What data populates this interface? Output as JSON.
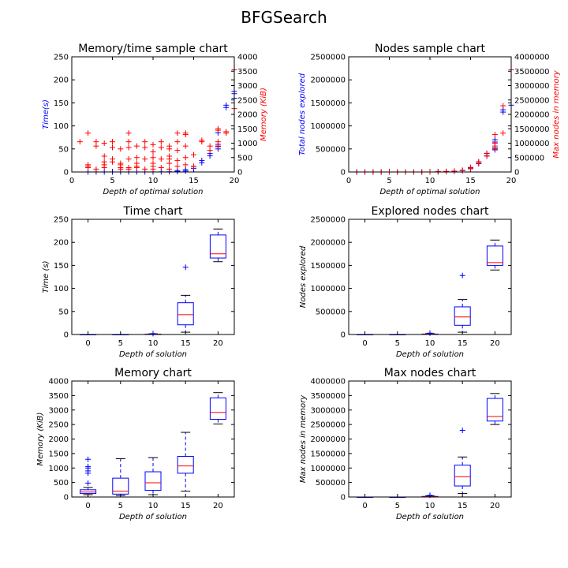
{
  "figure": {
    "title": "BFGSearch",
    "colors": {
      "primary": "#0000ff",
      "secondary": "#ff0000",
      "median": "#ff0000",
      "box": "#0000ff"
    }
  },
  "chart_data": [
    {
      "id": "memtime",
      "type": "scatter",
      "title": "Memory/time sample chart",
      "xlabel": "Depth of optimal solution",
      "ylabel": "Time(s)",
      "ylabel_right": "Memory (KiB)",
      "xlim": [
        0,
        20
      ],
      "xticks": [
        "0",
        "5",
        "10",
        "15",
        "20"
      ],
      "ylim": [
        0,
        250
      ],
      "yticks": [
        "0",
        "50",
        "100",
        "150",
        "200",
        "250"
      ],
      "ylim_right": [
        0,
        4000
      ],
      "yticks_right": [
        "0",
        "500",
        "1000",
        "1500",
        "2000",
        "2500",
        "3000",
        "3500",
        "4000"
      ],
      "series": [
        {
          "axis": "left",
          "color": "#0000ff",
          "marker": "+",
          "points": [
            [
              2,
              0.1
            ],
            [
              3,
              0.1
            ],
            [
              4,
              0.1
            ],
            [
              5,
              0.1
            ],
            [
              6,
              0.1
            ],
            [
              7,
              0.1
            ],
            [
              8,
              0.1
            ],
            [
              9,
              0.1
            ],
            [
              10,
              0.2
            ],
            [
              11,
              0.3
            ],
            [
              12,
              0.5
            ],
            [
              13,
              1
            ],
            [
              13,
              3
            ],
            [
              14,
              2
            ],
            [
              14,
              5
            ],
            [
              15,
              8
            ],
            [
              15,
              12
            ],
            [
              16,
              20
            ],
            [
              16,
              25
            ],
            [
              17,
              35
            ],
            [
              17,
              40
            ],
            [
              18,
              50
            ],
            [
              18,
              55
            ],
            [
              18,
              60
            ],
            [
              18,
              85
            ],
            [
              19,
              140
            ],
            [
              19,
              145
            ],
            [
              20,
              160
            ],
            [
              20,
              170
            ],
            [
              20,
              175
            ]
          ]
        },
        {
          "axis": "right",
          "color": "#ff0000",
          "marker": "+",
          "points": [
            [
              1,
              1050
            ],
            [
              2,
              250
            ],
            [
              2,
              200
            ],
            [
              2,
              150
            ],
            [
              2,
              1350
            ],
            [
              3,
              1050
            ],
            [
              3,
              900
            ],
            [
              3,
              100
            ],
            [
              4,
              1000
            ],
            [
              4,
              550
            ],
            [
              4,
              350
            ],
            [
              4,
              250
            ],
            [
              4,
              150
            ],
            [
              5,
              1050
            ],
            [
              5,
              850
            ],
            [
              5,
              450
            ],
            [
              5,
              350
            ],
            [
              6,
              800
            ],
            [
              6,
              300
            ],
            [
              6,
              250
            ],
            [
              6,
              150
            ],
            [
              6,
              100
            ],
            [
              7,
              1350
            ],
            [
              7,
              1050
            ],
            [
              7,
              850
            ],
            [
              7,
              450
            ],
            [
              7,
              150
            ],
            [
              7,
              100
            ],
            [
              8,
              900
            ],
            [
              8,
              500
            ],
            [
              8,
              300
            ],
            [
              8,
              200
            ],
            [
              8,
              150
            ],
            [
              9,
              1050
            ],
            [
              9,
              850
            ],
            [
              9,
              450
            ],
            [
              9,
              100
            ],
            [
              10,
              950
            ],
            [
              10,
              700
            ],
            [
              10,
              500
            ],
            [
              10,
              300
            ],
            [
              10,
              200
            ],
            [
              10,
              100
            ],
            [
              11,
              1050
            ],
            [
              11,
              850
            ],
            [
              11,
              450
            ],
            [
              11,
              150
            ],
            [
              12,
              900
            ],
            [
              12,
              800
            ],
            [
              12,
              550
            ],
            [
              12,
              450
            ],
            [
              12,
              300
            ],
            [
              12,
              100
            ],
            [
              13,
              1350
            ],
            [
              13,
              1050
            ],
            [
              13,
              750
            ],
            [
              13,
              400
            ],
            [
              13,
              200
            ],
            [
              14,
              1350
            ],
            [
              14,
              1300
            ],
            [
              14,
              900
            ],
            [
              14,
              500
            ],
            [
              14,
              250
            ],
            [
              15,
              600
            ],
            [
              15,
              200
            ],
            [
              16,
              1050
            ],
            [
              16,
              1100
            ],
            [
              17,
              900
            ],
            [
              17,
              750
            ],
            [
              18,
              1500
            ],
            [
              18,
              1450
            ],
            [
              18,
              1050
            ],
            [
              18,
              900
            ],
            [
              19,
              1400
            ],
            [
              19,
              1350
            ],
            [
              20,
              2200
            ],
            [
              20,
              3550
            ]
          ]
        }
      ]
    },
    {
      "id": "nodes",
      "type": "scatter",
      "title": "Nodes sample chart",
      "xlabel": "Depth of optimal solution",
      "ylabel": "Total nodes explored",
      "ylabel_right": "Max nodes in memory",
      "xlim": [
        0,
        20
      ],
      "xticks": [
        "0",
        "5",
        "10",
        "15",
        "20"
      ],
      "ylim": [
        0,
        2500000
      ],
      "yticks": [
        "0",
        "500000",
        "1000000",
        "1500000",
        "2000000",
        "2500000"
      ],
      "ylim_right": [
        0,
        4000000
      ],
      "yticks_right": [
        "0",
        "500000",
        "1000000",
        "1500000",
        "2000000",
        "2500000",
        "3000000",
        "3500000",
        "4000000"
      ],
      "series": [
        {
          "axis": "left",
          "color": "#0000ff",
          "marker": "+",
          "points": [
            [
              1,
              0
            ],
            [
              2,
              0
            ],
            [
              3,
              0
            ],
            [
              4,
              0
            ],
            [
              5,
              0
            ],
            [
              6,
              0
            ],
            [
              7,
              0
            ],
            [
              8,
              0
            ],
            [
              9,
              0
            ],
            [
              10,
              0
            ],
            [
              11,
              5000
            ],
            [
              12,
              10000
            ],
            [
              13,
              15000
            ],
            [
              14,
              30000
            ],
            [
              15,
              70000
            ],
            [
              15,
              90000
            ],
            [
              16,
              180000
            ],
            [
              16,
              220000
            ],
            [
              17,
              350000
            ],
            [
              17,
              400000
            ],
            [
              18,
              480000
            ],
            [
              18,
              520000
            ],
            [
              18,
              650000
            ],
            [
              18,
              700000
            ],
            [
              19,
              1300000
            ],
            [
              19,
              1350000
            ],
            [
              20,
              1450000
            ]
          ]
        },
        {
          "axis": "right",
          "color": "#ff0000",
          "marker": "+",
          "points": [
            [
              1,
              0
            ],
            [
              2,
              0
            ],
            [
              3,
              0
            ],
            [
              4,
              0
            ],
            [
              5,
              0
            ],
            [
              6,
              0
            ],
            [
              7,
              0
            ],
            [
              8,
              0
            ],
            [
              9,
              0
            ],
            [
              10,
              0
            ],
            [
              11,
              10000
            ],
            [
              12,
              20000
            ],
            [
              13,
              30000
            ],
            [
              14,
              60000
            ],
            [
              15,
              120000
            ],
            [
              15,
              160000
            ],
            [
              16,
              300000
            ],
            [
              16,
              350000
            ],
            [
              17,
              550000
            ],
            [
              17,
              650000
            ],
            [
              18,
              800000
            ],
            [
              18,
              900000
            ],
            [
              18,
              1000000
            ],
            [
              18,
              1300000
            ],
            [
              19,
              2300000
            ],
            [
              19,
              1350000
            ],
            [
              20,
              3550000
            ]
          ]
        }
      ]
    },
    {
      "id": "time",
      "type": "box",
      "title": "Time chart",
      "xlabel": "Depth of solution",
      "ylabel": "Time (s)",
      "categories": [
        "0",
        "5",
        "10",
        "15",
        "20"
      ],
      "ylim": [
        0,
        250
      ],
      "yticks": [
        "0",
        "50",
        "100",
        "150",
        "200",
        "250"
      ],
      "boxes": [
        {
          "x": 0,
          "min": 0,
          "q1": 0,
          "med": 0,
          "q3": 0,
          "max": 0,
          "outliers": []
        },
        {
          "x": 5,
          "min": 0,
          "q1": 0,
          "med": 0,
          "q3": 0,
          "max": 0,
          "outliers": []
        },
        {
          "x": 10,
          "min": 0,
          "q1": 0.2,
          "med": 0.4,
          "q3": 0.8,
          "max": 1.5,
          "outliers": [
            2
          ]
        },
        {
          "x": 15,
          "min": 5,
          "q1": 21,
          "med": 43,
          "q3": 69,
          "max": 85,
          "outliers": [
            146
          ]
        },
        {
          "x": 20,
          "min": 158,
          "q1": 166,
          "med": 175,
          "q3": 216,
          "max": 229,
          "outliers": []
        }
      ]
    },
    {
      "id": "explored",
      "type": "box",
      "title": "Explored nodes chart",
      "xlabel": "Depth of solution",
      "ylabel": "Nodes explored",
      "categories": [
        "0",
        "5",
        "10",
        "15",
        "20"
      ],
      "ylim": [
        0,
        2500000
      ],
      "yticks": [
        "0",
        "500000",
        "1000000",
        "1500000",
        "2000000",
        "2500000"
      ],
      "boxes": [
        {
          "x": 0,
          "min": 0,
          "q1": 0,
          "med": 0,
          "q3": 0,
          "max": 0,
          "outliers": []
        },
        {
          "x": 5,
          "min": 0,
          "q1": 0,
          "med": 0,
          "q3": 0,
          "max": 0,
          "outliers": []
        },
        {
          "x": 10,
          "min": 0,
          "q1": 2000,
          "med": 5000,
          "q3": 10000,
          "max": 20000,
          "outliers": [
            30000
          ]
        },
        {
          "x": 15,
          "min": 50000,
          "q1": 200000,
          "med": 380000,
          "q3": 600000,
          "max": 760000,
          "outliers": [
            1280000
          ]
        },
        {
          "x": 20,
          "min": 1400000,
          "q1": 1500000,
          "med": 1560000,
          "q3": 1920000,
          "max": 2050000,
          "outliers": []
        }
      ]
    },
    {
      "id": "memory",
      "type": "box",
      "title": "Memory chart",
      "xlabel": "Depth of solution",
      "ylabel": "Memory (KiB)",
      "categories": [
        "0",
        "5",
        "10",
        "15",
        "20"
      ],
      "ylim": [
        0,
        4000
      ],
      "yticks": [
        "0",
        "500",
        "1000",
        "1500",
        "2000",
        "2500",
        "3000",
        "3500",
        "4000"
      ],
      "boxes": [
        {
          "x": 0,
          "min": 80,
          "q1": 120,
          "med": 170,
          "q3": 250,
          "max": 330,
          "outliers": [
            480,
            820,
            900,
            1000,
            1050,
            1300
          ]
        },
        {
          "x": 5,
          "min": 50,
          "q1": 100,
          "med": 200,
          "q3": 650,
          "max": 1320,
          "outliers": []
        },
        {
          "x": 10,
          "min": 80,
          "q1": 230,
          "med": 490,
          "q3": 870,
          "max": 1360,
          "outliers": []
        },
        {
          "x": 15,
          "min": 200,
          "q1": 820,
          "med": 1070,
          "q3": 1400,
          "max": 2230,
          "outliers": []
        },
        {
          "x": 20,
          "min": 2520,
          "q1": 2680,
          "med": 2920,
          "q3": 3420,
          "max": 3600,
          "outliers": []
        }
      ]
    },
    {
      "id": "maxnodes",
      "type": "box",
      "title": "Max nodes chart",
      "xlabel": "Depth of solution",
      "ylabel": "Max nodes in memory",
      "categories": [
        "0",
        "5",
        "10",
        "15",
        "20"
      ],
      "ylim": [
        0,
        4000000
      ],
      "yticks": [
        "0",
        "500000",
        "1000000",
        "1500000",
        "2000000",
        "2500000",
        "3000000",
        "3500000",
        "4000000"
      ],
      "boxes": [
        {
          "x": 0,
          "min": 0,
          "q1": 0,
          "med": 0,
          "q3": 0,
          "max": 0,
          "outliers": []
        },
        {
          "x": 5,
          "min": 0,
          "q1": 0,
          "med": 0,
          "q3": 0,
          "max": 0,
          "outliers": []
        },
        {
          "x": 10,
          "min": 0,
          "q1": 5000,
          "med": 10000,
          "q3": 20000,
          "max": 40000,
          "outliers": [
            60000
          ]
        },
        {
          "x": 15,
          "min": 120000,
          "q1": 380000,
          "med": 700000,
          "q3": 1100000,
          "max": 1380000,
          "outliers": [
            2300000
          ]
        },
        {
          "x": 20,
          "min": 2500000,
          "q1": 2620000,
          "med": 2780000,
          "q3": 3400000,
          "max": 3570000,
          "outliers": []
        }
      ]
    }
  ]
}
